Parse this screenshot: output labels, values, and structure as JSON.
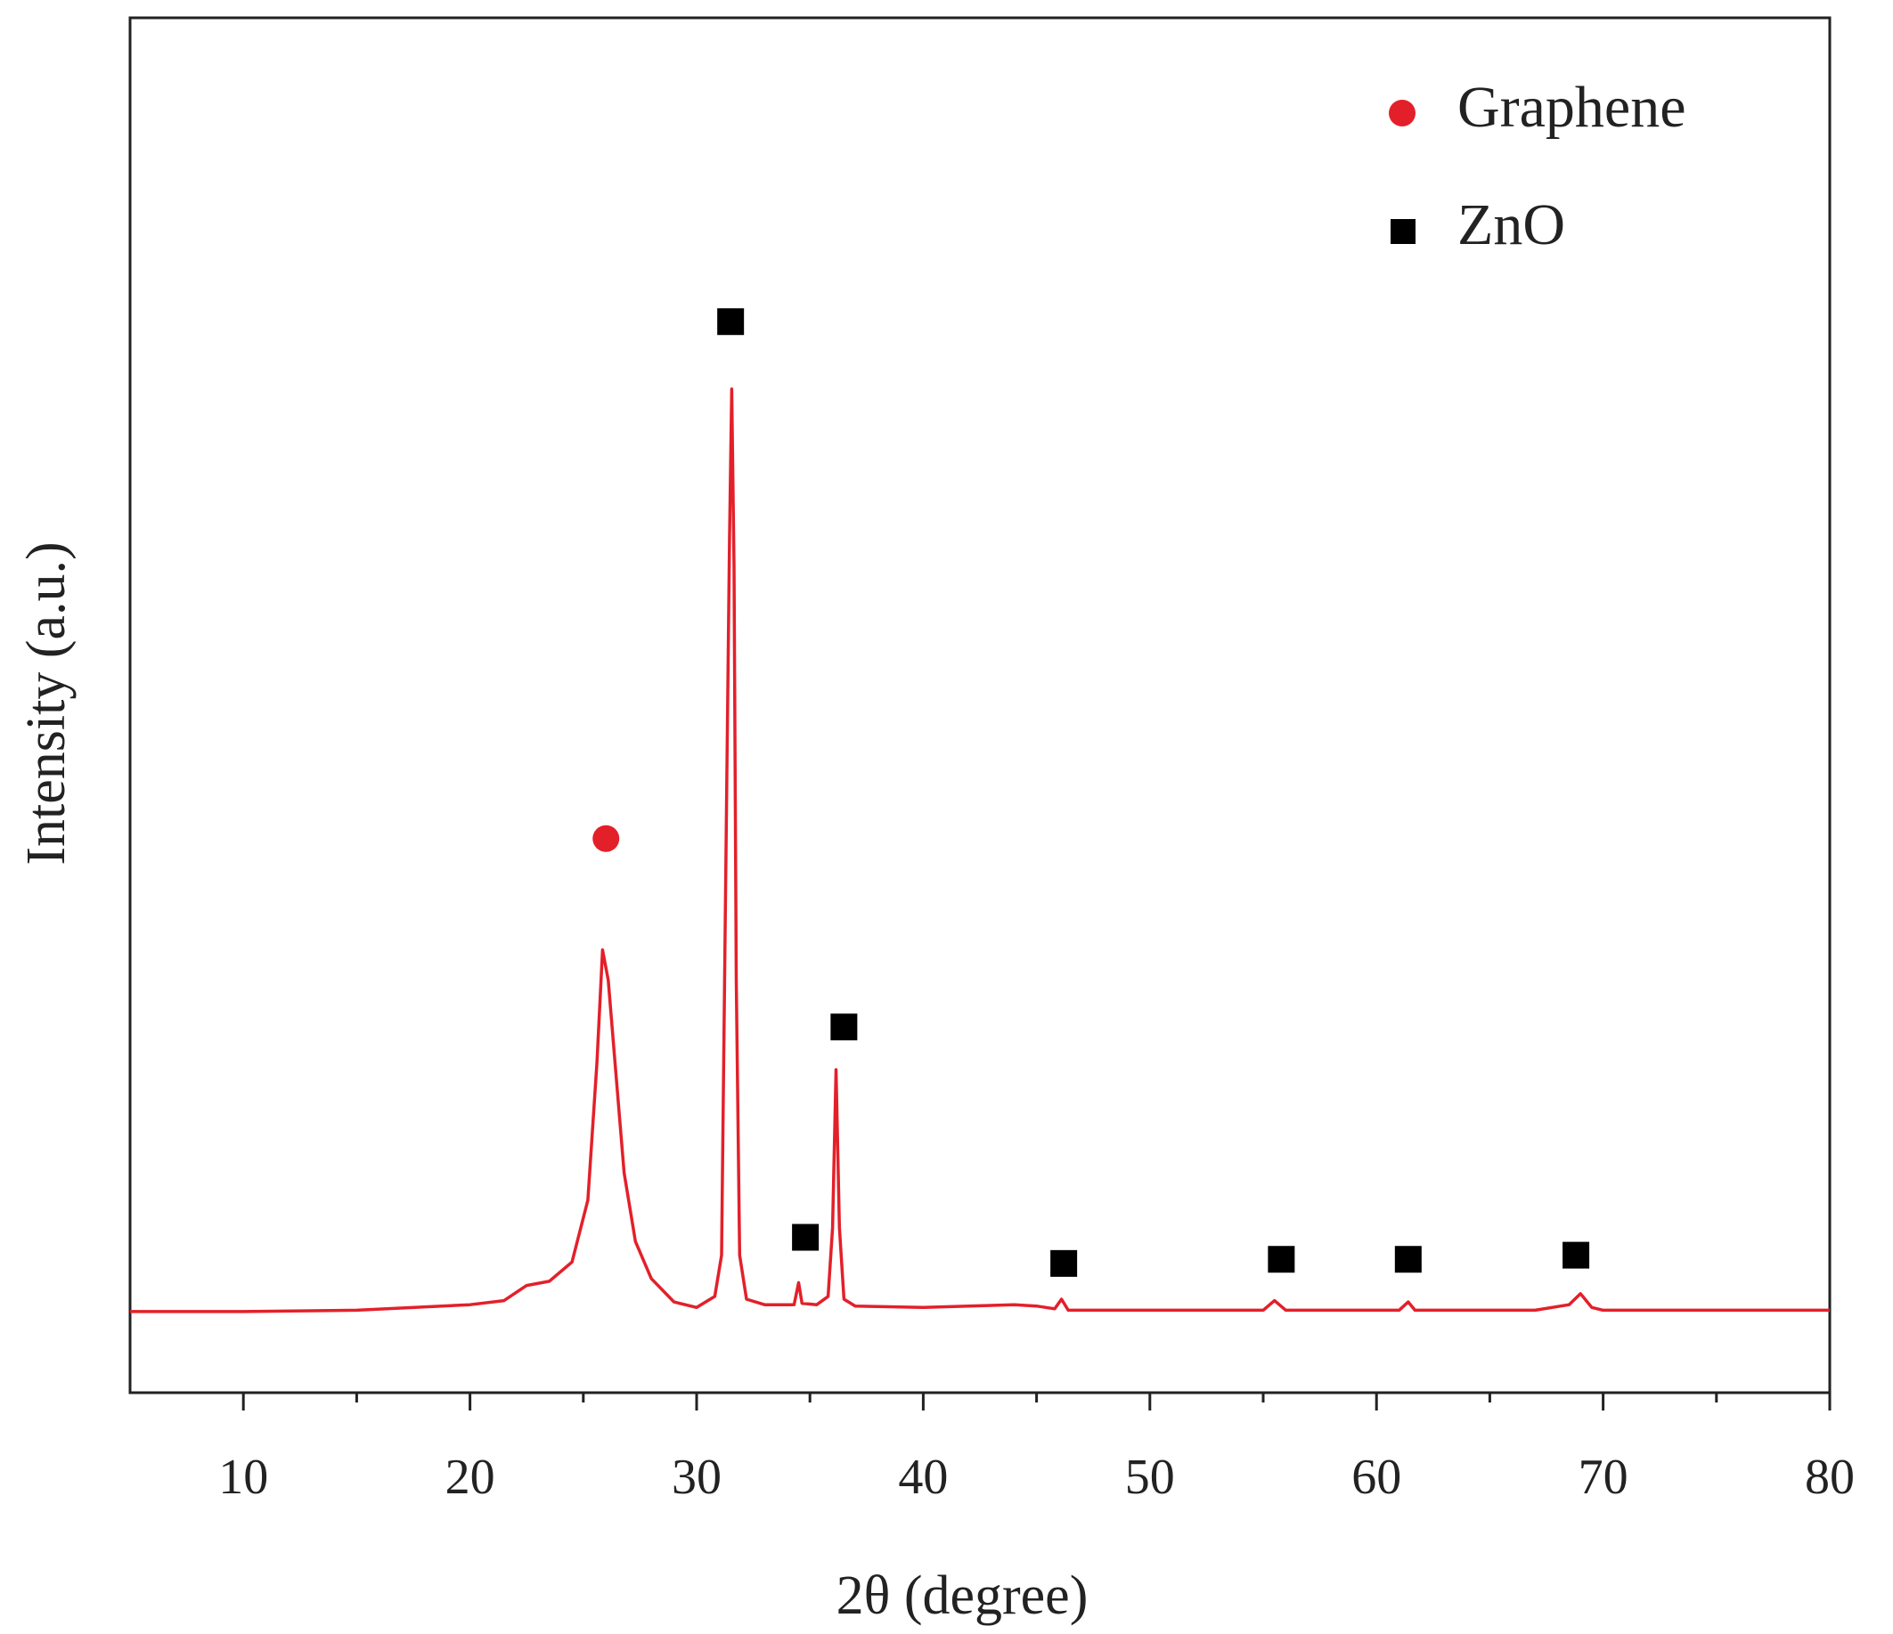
{
  "chart_data": {
    "type": "line",
    "xlabel": "2θ (degree)",
    "ylabel": "Intensity (a.u.)",
    "xlim": [
      5,
      80
    ],
    "xticks": [
      10,
      20,
      30,
      40,
      50,
      60,
      70,
      80
    ],
    "xminor_ticks": [
      15,
      25,
      35,
      45,
      55,
      65,
      75
    ],
    "ylim": [
      0,
      100
    ],
    "legend": "top-right",
    "series": [
      {
        "color": "#e3202a",
        "x": [
          5,
          10,
          15,
          20,
          21.5,
          22.5,
          23.5,
          24.5,
          25.2,
          25.6,
          25.85,
          26.1,
          26.4,
          26.8,
          27.3,
          28,
          29,
          30,
          30.8,
          31.1,
          31.3,
          31.45,
          31.55,
          31.65,
          31.75,
          31.9,
          32.2,
          33,
          34.3,
          34.5,
          34.65,
          35.3,
          35.8,
          36.0,
          36.15,
          36.3,
          36.5,
          37,
          40,
          44,
          45,
          45.8,
          46.1,
          46.4,
          50,
          55,
          55.5,
          56,
          61,
          61.4,
          61.7,
          67,
          68.5,
          69,
          69.5,
          70,
          75,
          80
        ],
        "values": [
          5.9,
          5.9,
          6.0,
          6.4,
          6.7,
          7.8,
          8.1,
          9.5,
          14,
          24,
          32.2,
          30,
          24,
          16,
          11,
          8.3,
          6.6,
          6.2,
          7,
          10,
          40,
          62,
          73,
          60,
          30,
          10,
          6.8,
          6.4,
          6.4,
          8,
          6.5,
          6.4,
          7,
          12,
          23.5,
          12,
          6.8,
          6.3,
          6.2,
          6.4,
          6.3,
          6.1,
          6.8,
          6.0,
          6.0,
          6.0,
          6.7,
          6.0,
          6.0,
          6.6,
          6.0,
          6.0,
          6.4,
          7.2,
          6.2,
          6.0,
          6.0,
          6.0
        ]
      },
      {
        "name": "Graphene",
        "color": "#e3202a",
        "marker": "circle",
        "x": [
          26
        ],
        "values": [
          40.3
        ]
      },
      {
        "name": "ZnO",
        "color": "#000000",
        "marker": "square",
        "x": [
          31.5,
          34.8,
          36.5,
          46.2,
          55.8,
          61.4,
          68.8
        ],
        "values": [
          77.9,
          11.3,
          26.6,
          9.4,
          9.7,
          9.7,
          10
        ]
      }
    ]
  }
}
